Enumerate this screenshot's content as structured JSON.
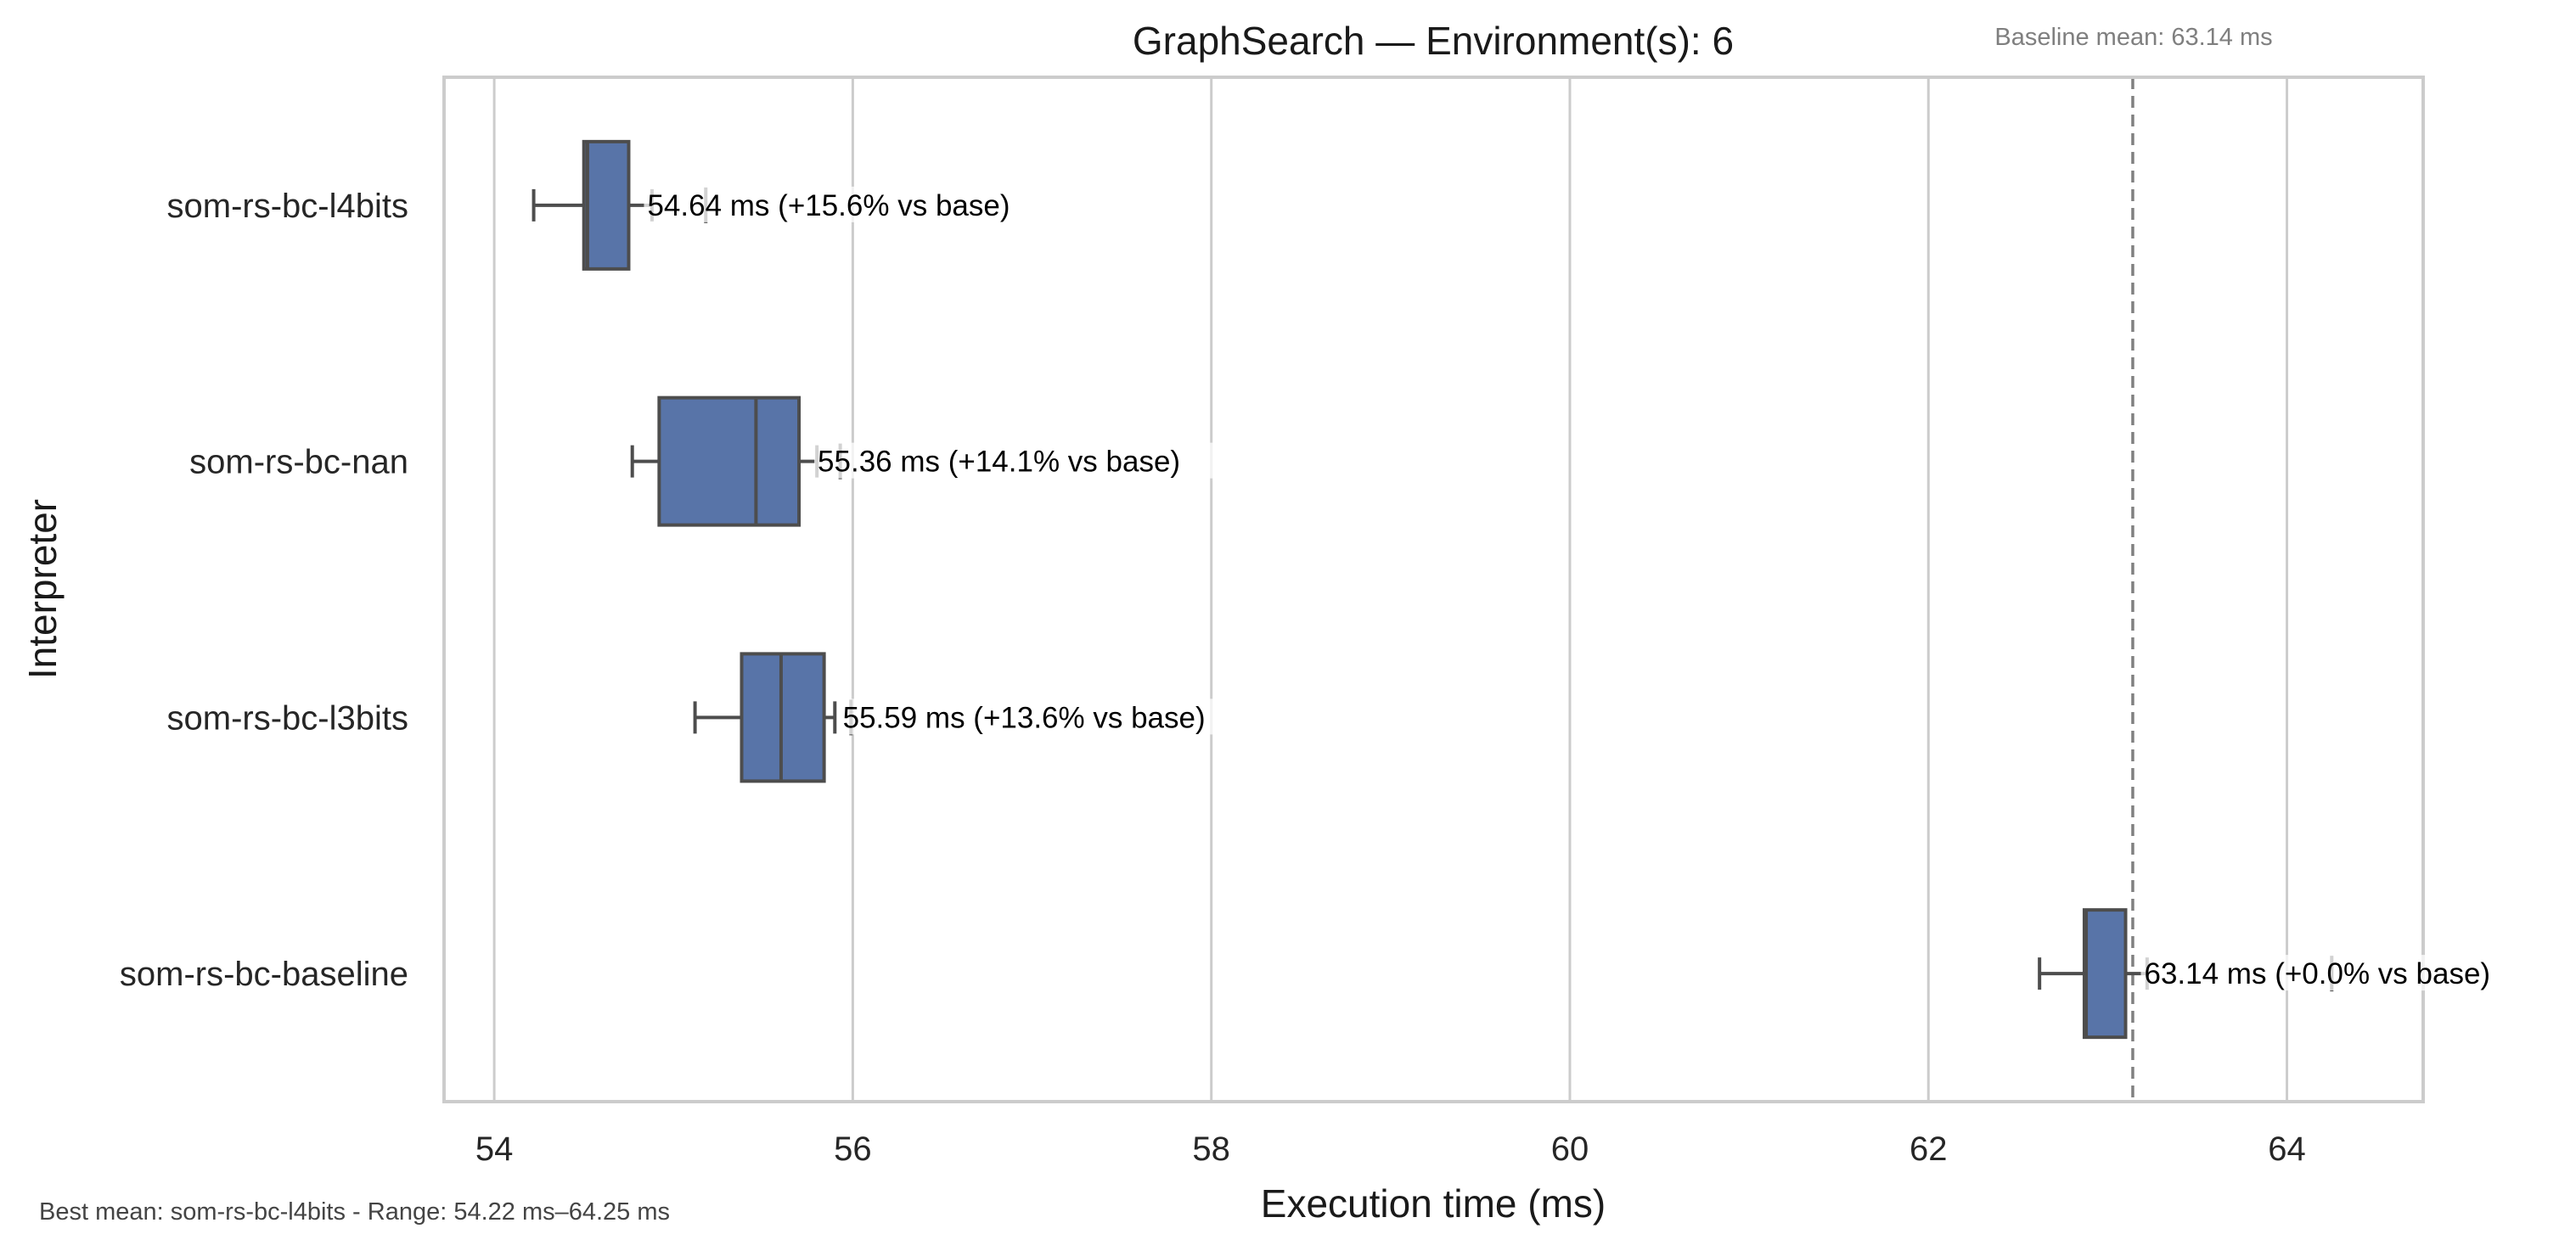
{
  "chart_data": {
    "type": "box",
    "orientation": "horizontal",
    "title": "GraphSearch — Environment(s): 6",
    "xlabel": "Execution time (ms)",
    "ylabel": "Interpreter",
    "xlim": [
      53.72,
      64.76
    ],
    "xticks": [
      54,
      56,
      58,
      60,
      62,
      64
    ],
    "grid": "vertical",
    "box_color": "#5874a8",
    "edge_color": "#4d4d4d",
    "baseline": {
      "value": 63.14,
      "label": "Baseline mean: 63.14 ms",
      "line_style": "dashed",
      "color": "#808080"
    },
    "categories": [
      "som-rs-bc-l4bits",
      "som-rs-bc-nan",
      "som-rs-bc-l3bits",
      "som-rs-bc-baseline"
    ],
    "boxes": [
      {
        "name": "som-rs-bc-l4bits",
        "whisker_low": 54.22,
        "q1": 54.5,
        "median": 54.52,
        "q3": 54.75,
        "whisker_high": 54.88,
        "outliers": [
          55.18
        ],
        "mean": 54.64,
        "annotation": "54.64 ms  (+15.6% vs base)"
      },
      {
        "name": "som-rs-bc-nan",
        "whisker_low": 54.77,
        "q1": 54.92,
        "median": 55.46,
        "q3": 55.7,
        "whisker_high": 55.8,
        "outliers": [
          55.93
        ],
        "mean": 55.36,
        "annotation": "55.36 ms  (+14.1% vs base)"
      },
      {
        "name": "som-rs-bc-l3bits",
        "whisker_low": 55.12,
        "q1": 55.38,
        "median": 55.6,
        "q3": 55.84,
        "whisker_high": 55.9,
        "outliers": [
          55.99
        ],
        "mean": 55.59,
        "annotation": "55.59 ms  (+13.6% vs base)"
      },
      {
        "name": "som-rs-bc-baseline",
        "whisker_low": 62.62,
        "q1": 62.87,
        "median": 62.88,
        "q3": 63.1,
        "whisker_high": 63.22,
        "outliers": [
          64.25
        ],
        "mean": 63.14,
        "annotation": "63.14 ms  (+0.0% vs base)"
      }
    ],
    "footnote": "Best mean: som-rs-bc-l4bits - Range: 54.22 ms–64.25 ms"
  }
}
